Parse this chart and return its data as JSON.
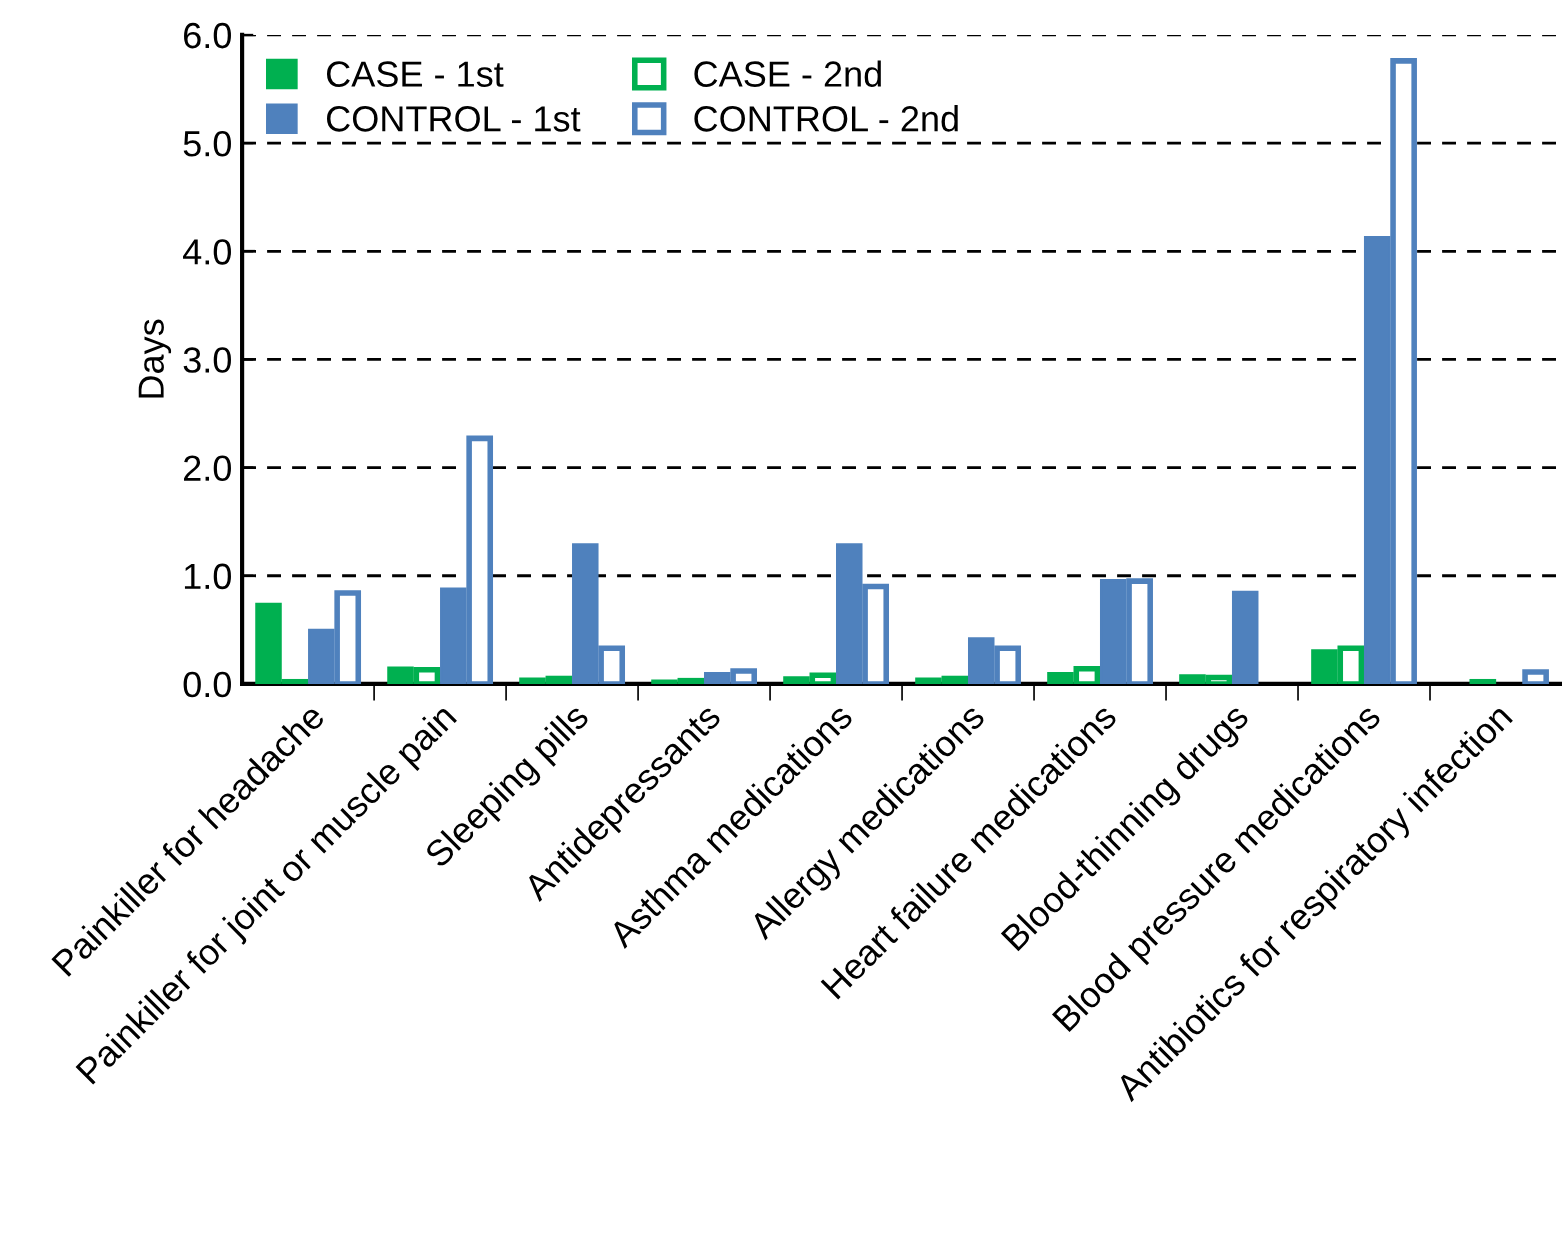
{
  "chart_data": {
    "type": "bar",
    "ylabel": "Days",
    "categories": [
      "Painkiller for headache",
      "Painkiller for joint or muscle pain",
      "Sleeping pills",
      "Antidepressants",
      "Asthma medications",
      "Allergy medications",
      "Heart failure medications",
      "Blood-thinning drugs",
      "Blood pressure medications",
      "Antibiotics for respiratory infection"
    ],
    "series": [
      {
        "name": "CASE - 1st",
        "color": "#00b050",
        "values": [
          0.74,
          0.15,
          0.05,
          0.03,
          0.06,
          0.05,
          0.1,
          0.08,
          0.31,
          null
        ]
      },
      {
        "name": "CASE - 2nd",
        "color": "#00b050",
        "values": [
          0.02,
          0.13,
          0.05,
          0.03,
          0.08,
          0.05,
          0.14,
          0.06,
          0.33,
          0.02
        ]
      },
      {
        "name": "CONTROL - 1st",
        "color": "#4f81bd",
        "values": [
          0.5,
          0.88,
          1.29,
          0.1,
          1.29,
          0.42,
          0.96,
          0.85,
          4.13,
          null
        ]
      },
      {
        "name": "CONTROL - 2nd",
        "color": "#4f81bd",
        "values": [
          0.84,
          2.27,
          0.33,
          0.12,
          0.9,
          0.33,
          0.95,
          null,
          5.76,
          0.11
        ]
      }
    ],
    "ylim": [
      0,
      6
    ],
    "yticks": [
      {
        "value": 0,
        "label": "0.0"
      },
      {
        "value": 1,
        "label": "1.0"
      },
      {
        "value": 2,
        "label": "2.0"
      },
      {
        "value": 3,
        "label": "3.0"
      },
      {
        "value": 4,
        "label": "4.0"
      },
      {
        "value": 5,
        "label": "5.0"
      },
      {
        "value": 6,
        "label": "6.0"
      }
    ],
    "grid": "y",
    "legend": "top left"
  }
}
